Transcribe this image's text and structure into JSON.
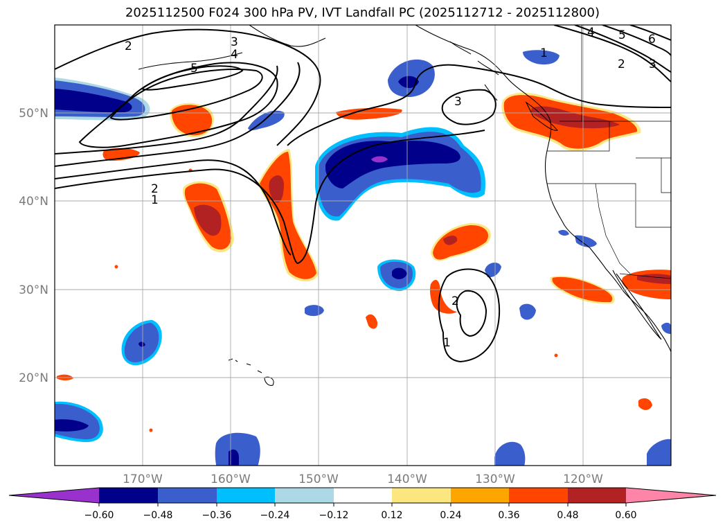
{
  "title": "2025112500 F024 300 hPa PV, IVT Landfall PC (2025112712 - 2025112800)",
  "colors": {
    "neg_extend": "#9932cc",
    "n060": "#00008b",
    "n048": "#3a5fcd",
    "n036": "#00bfff",
    "n024": "#add8e6",
    "zero": "#ffffff",
    "p012": "#fce680",
    "p024": "#ffa500",
    "p036": "#ff4500",
    "p048": "#b22222",
    "pos_extend": "#ff85a8"
  },
  "map": {
    "lon_range": [
      -180,
      -110
    ],
    "lat_range": [
      10,
      60
    ],
    "lon_ticks": [
      {
        "value": -170,
        "label": "170°W"
      },
      {
        "value": -160,
        "label": "160°W"
      },
      {
        "value": -150,
        "label": "150°W"
      },
      {
        "value": -140,
        "label": "140°W"
      },
      {
        "value": -130,
        "label": "130°W"
      },
      {
        "value": -120,
        "label": "120°W"
      }
    ],
    "lat_ticks": [
      {
        "value": 50,
        "label": "50°N"
      },
      {
        "value": 40,
        "label": "40°N"
      },
      {
        "value": 30,
        "label": "30°N"
      },
      {
        "value": 20,
        "label": "20°N"
      }
    ]
  },
  "colorbar": {
    "ticks": [
      "−0.60",
      "−0.48",
      "−0.36",
      "−0.24",
      "−0.12",
      "0.12",
      "0.24",
      "0.36",
      "0.48",
      "0.60"
    ]
  },
  "contour_labels": {
    "c1": "1",
    "c2": "2",
    "c3": "3",
    "c4": "4",
    "c5": "5",
    "c6": "6"
  }
}
